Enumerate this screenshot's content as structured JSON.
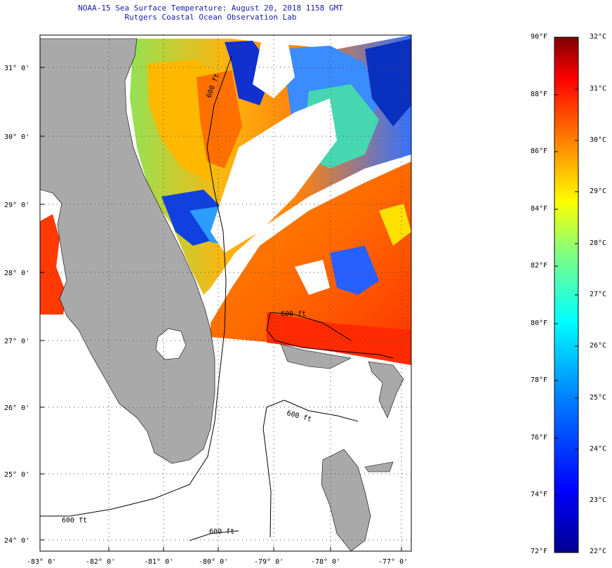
{
  "header": {
    "title": "NOAA-15 Sea Surface Temperature:  August 20, 2018 1158 GMT",
    "subtitle": "Rutgers Coastal Ocean Observation Lab"
  },
  "map": {
    "lat_labels": [
      "31° 0'",
      "30° 0'",
      "29° 0'",
      "28° 0'",
      "27° 0'",
      "26° 0'",
      "25° 0'",
      "24° 0'"
    ],
    "lon_labels": [
      "-83° 0'",
      "-82° 0'",
      "-81° 0'",
      "-80° 0'",
      "-79° 0'",
      "-78° 0'",
      "-77° 0'"
    ],
    "lat_range": [
      23.8,
      31.4
    ],
    "lon_range": [
      -83.0,
      -77.15
    ],
    "contour_labels": [
      "600 ft",
      "600 ft",
      "600 ft",
      "600 ft",
      "600 ft"
    ],
    "colors": {
      "land": "#a9a9a9",
      "no_data": "#ffffff",
      "title": "#1a1aa6"
    }
  },
  "colorbar": {
    "fahrenheit": [
      "90°F",
      "88°F",
      "86°F",
      "84°F",
      "82°F",
      "80°F",
      "78°F",
      "76°F",
      "74°F",
      "72°F"
    ],
    "celsius": [
      "32°C",
      "31°C",
      "30°C",
      "29°C",
      "28°C",
      "27°C",
      "26°C",
      "25°C",
      "24°C",
      "23°C",
      "22°C"
    ],
    "range_f": [
      72,
      90
    ],
    "range_c": [
      22,
      32
    ],
    "gradient": [
      "#7f0000",
      "#ff0000",
      "#ff8000",
      "#ffff00",
      "#80ff80",
      "#00ffff",
      "#0080ff",
      "#0000ff",
      "#00008f"
    ]
  }
}
